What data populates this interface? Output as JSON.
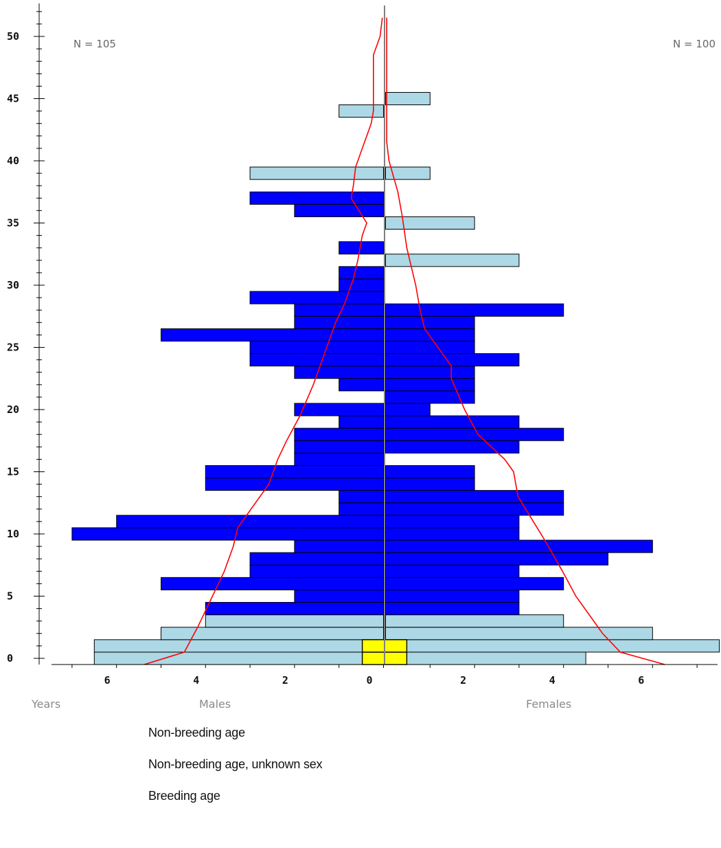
{
  "chart_data": {
    "type": "population-pyramid",
    "y_axis": {
      "label": "Years",
      "range": [
        0,
        52
      ],
      "tick_labels": [
        "0",
        "5",
        "10",
        "15",
        "20",
        "25",
        "30",
        "35",
        "40",
        "45",
        "50"
      ]
    },
    "x_axis": {
      "males_label": "Males",
      "females_label": "Females",
      "male_tick_labels": [
        "6",
        "4",
        "2",
        "0"
      ],
      "female_tick_labels": [
        "2",
        "4",
        "6"
      ],
      "male_range": [
        0,
        7
      ],
      "female_range": [
        0,
        7.5
      ]
    },
    "male_total": "N = 105",
    "female_total": "N = 100",
    "colors": {
      "non_breeding": "#add8e6",
      "unknown_sex": "#ffff00",
      "breeding": "#0000ff",
      "life_line": "#ff0000",
      "center_line": "#808080"
    },
    "bars": [
      {
        "age": 0,
        "males": 6.5,
        "females": 4.5,
        "category": "non_breeding"
      },
      {
        "age": 1,
        "males": 6.5,
        "females": 7.5,
        "category": "non_breeding"
      },
      {
        "age": 2,
        "males": 5,
        "females": 6,
        "category": "non_breeding"
      },
      {
        "age": 3,
        "males": 4,
        "females": 4,
        "category": "non_breeding"
      },
      {
        "age": 4,
        "males": 4,
        "females": 3,
        "category": "breeding"
      },
      {
        "age": 5,
        "males": 2,
        "females": 3,
        "category": "breeding"
      },
      {
        "age": 6,
        "males": 5,
        "females": 4,
        "category": "breeding"
      },
      {
        "age": 7,
        "males": 3,
        "females": 3,
        "category": "breeding"
      },
      {
        "age": 8,
        "males": 3,
        "females": 5,
        "category": "breeding"
      },
      {
        "age": 9,
        "males": 2,
        "females": 6,
        "category": "breeding"
      },
      {
        "age": 10,
        "males": 7,
        "females": 3,
        "category": "breeding"
      },
      {
        "age": 11,
        "males": 6,
        "females": 3,
        "category": "breeding"
      },
      {
        "age": 12,
        "males": 1,
        "females": 4,
        "category": "breeding"
      },
      {
        "age": 13,
        "males": 1,
        "females": 4,
        "category": "breeding"
      },
      {
        "age": 14,
        "males": 4,
        "females": 2,
        "category": "breeding"
      },
      {
        "age": 15,
        "males": 4,
        "females": 2,
        "category": "breeding"
      },
      {
        "age": 16,
        "males": 2,
        "females": 0,
        "category": "breeding"
      },
      {
        "age": 17,
        "males": 2,
        "females": 3,
        "category": "breeding"
      },
      {
        "age": 18,
        "males": 2,
        "females": 4,
        "category": "breeding"
      },
      {
        "age": 19,
        "males": 1,
        "females": 3,
        "category": "breeding"
      },
      {
        "age": 20,
        "males": 2,
        "females": 1,
        "category": "breeding"
      },
      {
        "age": 21,
        "males": 0,
        "females": 2,
        "category": "breeding"
      },
      {
        "age": 22,
        "males": 1,
        "females": 2,
        "category": "breeding"
      },
      {
        "age": 23,
        "males": 2,
        "females": 2,
        "category": "breeding"
      },
      {
        "age": 24,
        "males": 3,
        "females": 3,
        "category": "breeding"
      },
      {
        "age": 25,
        "males": 3,
        "females": 2,
        "category": "breeding"
      },
      {
        "age": 26,
        "males": 5,
        "females": 2,
        "category": "breeding"
      },
      {
        "age": 27,
        "males": 2,
        "females": 2,
        "category": "breeding"
      },
      {
        "age": 28,
        "males": 2,
        "females": 4,
        "category": "breeding"
      },
      {
        "age": 29,
        "males": 3,
        "females": 0,
        "category": "breeding"
      },
      {
        "age": 30,
        "males": 1,
        "females": 0,
        "category": "breeding"
      },
      {
        "age": 31,
        "males": 1,
        "females": 0,
        "category": "breeding"
      },
      {
        "age": 32,
        "males": 0,
        "females": 3,
        "category": "non_breeding"
      },
      {
        "age": 33,
        "males": 1,
        "females": 0,
        "category": "breeding"
      },
      {
        "age": 35,
        "males": 0,
        "females": 2,
        "category": "non_breeding"
      },
      {
        "age": 36,
        "males": 2,
        "females": 0,
        "category": "breeding"
      },
      {
        "age": 37,
        "males": 3,
        "females": 0,
        "category": "breeding"
      },
      {
        "age": 39,
        "males": 3,
        "females": 1,
        "category": "non_breeding"
      },
      {
        "age": 44,
        "males": 1,
        "females": 0,
        "category": "non_breeding"
      },
      {
        "age": 45,
        "males": 0,
        "females": 1,
        "category": "non_breeding"
      }
    ],
    "unknown_sex_bars": [
      {
        "age": 0,
        "count": 1
      },
      {
        "age": 1,
        "count": 1
      }
    ],
    "male_life_line": [
      [
        5.4,
        -0.5
      ],
      [
        4.5,
        0.5
      ],
      [
        4.2,
        2.5
      ],
      [
        4.0,
        4
      ],
      [
        3.6,
        7
      ],
      [
        3.4,
        9
      ],
      [
        3.3,
        10.5
      ],
      [
        3.0,
        12
      ],
      [
        2.6,
        14
      ],
      [
        2.4,
        16
      ],
      [
        2.2,
        17.5
      ],
      [
        1.9,
        19.5
      ],
      [
        1.6,
        22
      ],
      [
        1.5,
        23
      ],
      [
        1.3,
        25
      ],
      [
        1.1,
        27
      ],
      [
        0.9,
        28.5
      ],
      [
        0.7,
        30.5
      ],
      [
        0.6,
        32
      ],
      [
        0.5,
        34
      ],
      [
        0.4,
        35
      ],
      [
        0.75,
        37
      ],
      [
        0.7,
        38
      ],
      [
        0.65,
        39.5
      ],
      [
        0.55,
        40.5
      ],
      [
        0.3,
        43
      ],
      [
        0.25,
        44
      ],
      [
        0.25,
        48.5
      ],
      [
        0.1,
        50
      ],
      [
        0.05,
        51.5
      ]
    ],
    "female_life_line": [
      [
        6.3,
        -0.5
      ],
      [
        5.3,
        0.5
      ],
      [
        4.9,
        2
      ],
      [
        4.6,
        3.5
      ],
      [
        4.3,
        5
      ],
      [
        4.0,
        7
      ],
      [
        3.6,
        9.5
      ],
      [
        3.0,
        13
      ],
      [
        2.9,
        15
      ],
      [
        2.7,
        16
      ],
      [
        2.1,
        18
      ],
      [
        1.8,
        20
      ],
      [
        1.5,
        22.5
      ],
      [
        1.5,
        23.5
      ],
      [
        1.2,
        25
      ],
      [
        0.9,
        26.5
      ],
      [
        0.8,
        28
      ],
      [
        0.7,
        30
      ],
      [
        0.6,
        31.5
      ],
      [
        0.5,
        33
      ],
      [
        0.4,
        35.5
      ],
      [
        0.3,
        37.5
      ],
      [
        0.1,
        40
      ],
      [
        0.05,
        41.5
      ],
      [
        0.05,
        44
      ],
      [
        0.05,
        46
      ],
      [
        0.05,
        51.5
      ]
    ]
  },
  "legend": {
    "items": [
      {
        "label": "Non-breeding age",
        "category": "non_breeding"
      },
      {
        "label": "Non-breeding age, unknown sex",
        "category": "unknown_sex"
      },
      {
        "label": "Breeding age",
        "category": "breeding"
      }
    ]
  }
}
